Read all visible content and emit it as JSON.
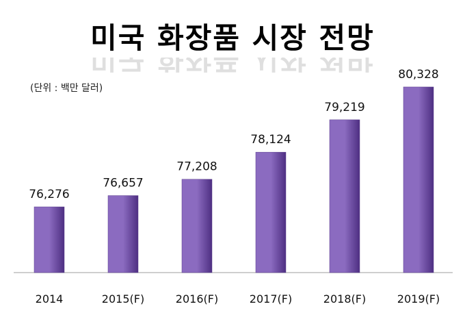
{
  "chart_data": {
    "type": "bar",
    "title": "미국 화장품 시장 전망",
    "unit_note": "(단위 : 백만 달러)",
    "categories": [
      "2014",
      "2015(F)",
      "2016(F)",
      "2017(F)",
      "2018(F)",
      "2019(F)"
    ],
    "values": [
      76276,
      76657,
      77208,
      78124,
      79219,
      80328
    ],
    "value_labels": [
      "76,276",
      "76,657",
      "77,208",
      "78,124",
      "79,219",
      "80,328"
    ],
    "xlabel": "",
    "ylabel": "",
    "ylim": [
      74054,
      80500
    ],
    "grid": false,
    "bar_color_light": "#8b6bc0",
    "bar_color_dark": "#4e2f82"
  }
}
